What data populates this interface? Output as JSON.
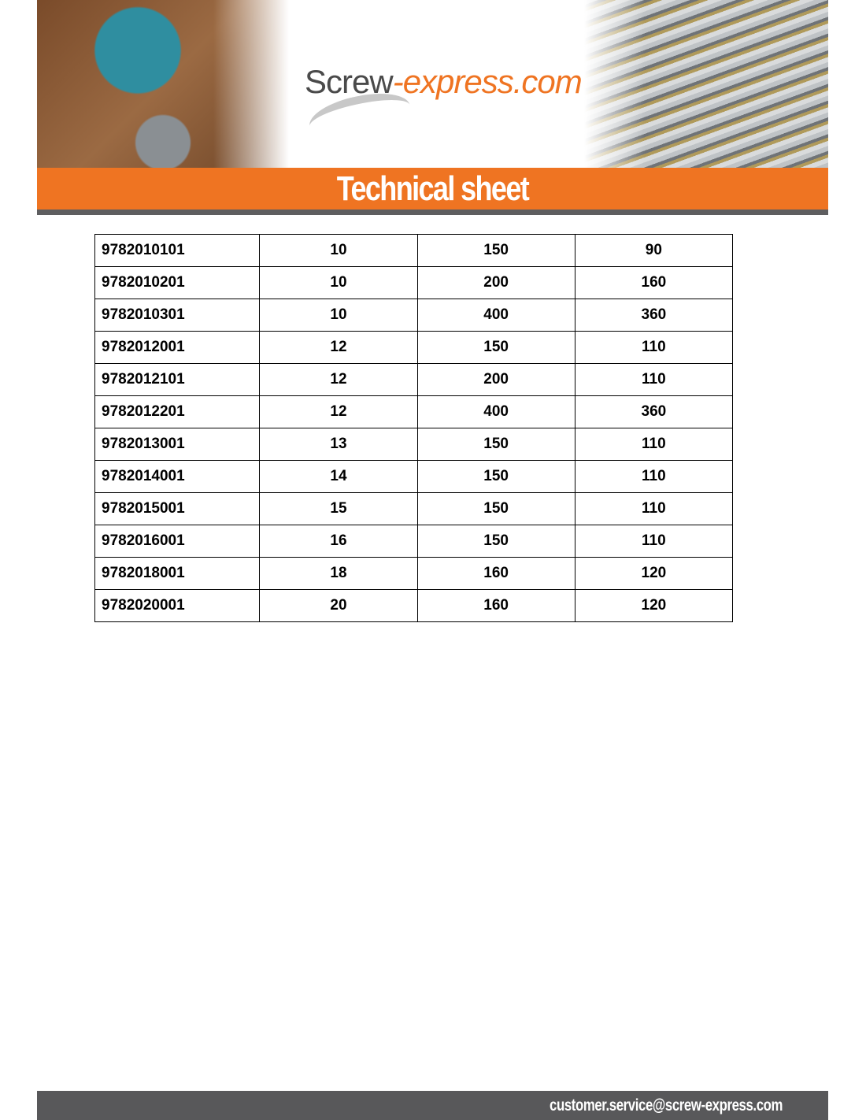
{
  "header": {
    "logo_text": "Screw-express.com",
    "logo_part1": "Screw",
    "logo_part2": "-express.com",
    "title": "Technical sheet"
  },
  "colors": {
    "accent": "#ef7422",
    "dark_grey": "#58585a"
  },
  "table": {
    "rows": [
      [
        "9782010101",
        "10",
        "150",
        "90"
      ],
      [
        "9782010201",
        "10",
        "200",
        "160"
      ],
      [
        "9782010301",
        "10",
        "400",
        "360"
      ],
      [
        "9782012001",
        "12",
        "150",
        "110"
      ],
      [
        "9782012101",
        "12",
        "200",
        "110"
      ],
      [
        "9782012201",
        "12",
        "400",
        "360"
      ],
      [
        "9782013001",
        "13",
        "150",
        "110"
      ],
      [
        "9782014001",
        "14",
        "150",
        "110"
      ],
      [
        "9782015001",
        "15",
        "150",
        "110"
      ],
      [
        "9782016001",
        "16",
        "150",
        "110"
      ],
      [
        "9782018001",
        "18",
        "160",
        "120"
      ],
      [
        "9782020001",
        "20",
        "160",
        "120"
      ]
    ]
  },
  "footer": {
    "email": "customer.service@screw-express.com"
  }
}
